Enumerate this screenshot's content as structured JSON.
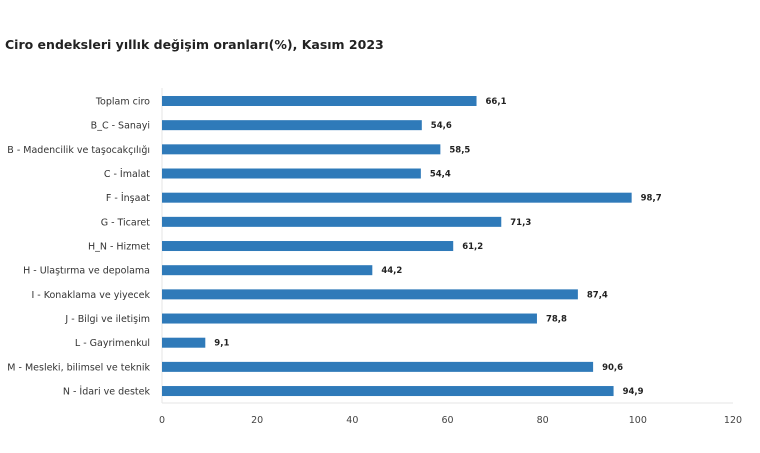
{
  "chart_data": {
    "type": "bar",
    "orientation": "horizontal",
    "title": "Ciro endeksleri yıllık değişim oranları(%), Kasım 2023",
    "categories": [
      "Toplam ciro",
      "B_C - Sanayi",
      "B - Madencilik ve taşocakçılığı",
      "C - İmalat",
      "F - İnşaat",
      "G - Ticaret",
      "H_N - Hizmet",
      "H - Ulaştırma ve depolama",
      "I - Konaklama ve yiyecek",
      "J - Bilgi ve iletişim",
      "L - Gayrimenkul",
      "M - Mesleki, bilimsel ve teknik",
      "N - İdari ve destek"
    ],
    "values": [
      66.1,
      54.6,
      58.5,
      54.4,
      98.7,
      71.3,
      61.2,
      44.2,
      87.4,
      78.8,
      9.1,
      90.6,
      94.9
    ],
    "value_labels": [
      "66,1",
      "54,6",
      "58,5",
      "54,4",
      "98,7",
      "71,3",
      "61,2",
      "44,2",
      "87,4",
      "78,8",
      "9,1",
      "90,6",
      "94,9"
    ],
    "xlim": [
      0,
      120
    ],
    "xticks": [
      "0",
      "20",
      "40",
      "60",
      "80",
      "100",
      "120"
    ],
    "xlabel": "",
    "ylabel": "",
    "grid": false,
    "bar_color": "#2f7ab9"
  }
}
